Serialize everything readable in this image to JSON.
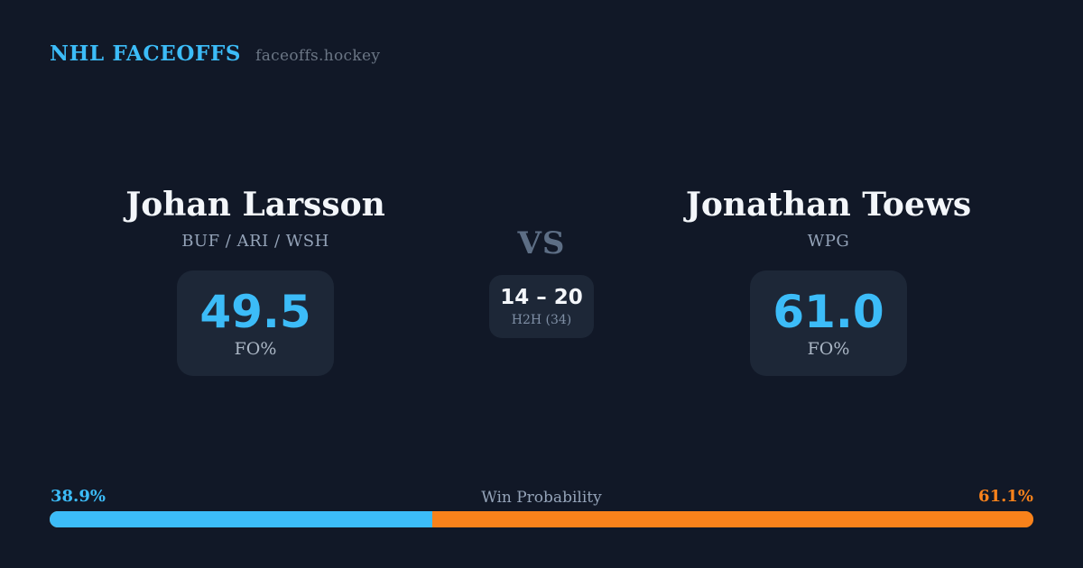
{
  "header": {
    "brand": "NHL FACEOFFS",
    "site": "faceoffs.hockey"
  },
  "players": {
    "left": {
      "name": "Johan Larsson",
      "teams": "BUF / ARI / WSH",
      "stat_value": "49.5",
      "stat_label": "FO%"
    },
    "right": {
      "name": "Jonathan Toews",
      "teams": "WPG",
      "stat_value": "61.0",
      "stat_label": "FO%"
    }
  },
  "center": {
    "vs": "VS",
    "h2h_score": "14 – 20",
    "h2h_label": "H2H (34)"
  },
  "win_probability": {
    "label": "Win Probability",
    "left_pct": "38.9%",
    "right_pct": "61.1%",
    "left_value": 38.9,
    "right_value": 61.1
  },
  "colors": {
    "background": "#111827",
    "card": "#1d2737",
    "accent_blue": "#3cbcf8",
    "accent_orange": "#f9821b",
    "text_primary": "#f3f6fa",
    "text_muted": "#94a3b8",
    "vs_gray": "#5d6e85"
  }
}
